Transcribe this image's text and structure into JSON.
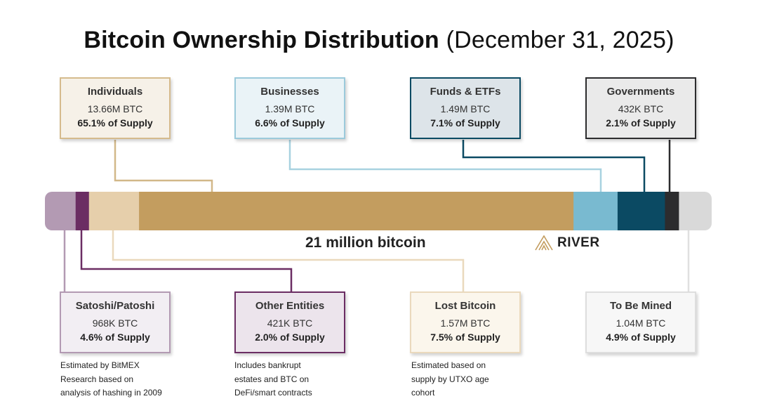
{
  "title": {
    "main": "Bitcoin Ownership Distribution",
    "date": "(December 31, 2025)"
  },
  "bar_label": "21 million bitcoin",
  "logo_text": "RIVER",
  "colors": {
    "satoshi": "#b39ab3",
    "other_entities": "#6b2d63",
    "lost": "#e6cfab",
    "individuals": "#c39d5f",
    "businesses": "#79bad0",
    "funds": "#0b4a63",
    "governments": "#2c2c2e",
    "to_be_mined": "#d9d9d9"
  },
  "chart_data": {
    "type": "bar",
    "total": "21 million bitcoin",
    "segments": [
      {
        "name": "Satoshi/Patoshi",
        "btc": "968K BTC",
        "percent": 4.6
      },
      {
        "name": "Other Entities",
        "btc": "421K BTC",
        "percent": 2.0
      },
      {
        "name": "Lost Bitcoin",
        "btc": "1.57M BTC",
        "percent": 7.5
      },
      {
        "name": "Individuals",
        "btc": "13.66M BTC",
        "percent": 65.1
      },
      {
        "name": "Businesses",
        "btc": "1.39M BTC",
        "percent": 6.6
      },
      {
        "name": "Funds & ETFs",
        "btc": "1.49M BTC",
        "percent": 7.1
      },
      {
        "name": "Governments",
        "btc": "432K BTC",
        "percent": 2.1
      },
      {
        "name": "To Be Mined",
        "btc": "1.04M BTC",
        "percent": 4.9
      }
    ]
  },
  "boxes": {
    "individuals": {
      "label": "Individuals",
      "btc": "13.66M BTC",
      "pct": "65.1% of Supply"
    },
    "businesses": {
      "label": "Businesses",
      "btc": "1.39M BTC",
      "pct": "6.6% of Supply"
    },
    "funds": {
      "label": "Funds & ETFs",
      "btc": "1.49M BTC",
      "pct": "7.1% of Supply"
    },
    "governments": {
      "label": "Governments",
      "btc": "432K BTC",
      "pct": "2.1% of Supply"
    },
    "satoshi": {
      "label": "Satoshi/Patoshi",
      "btc": "968K BTC",
      "pct": "4.6% of Supply"
    },
    "other_entities": {
      "label": "Other Entities",
      "btc": "421K BTC",
      "pct": "2.0% of Supply"
    },
    "lost": {
      "label": "Lost Bitcoin",
      "btc": "1.57M BTC",
      "pct": "7.5% of Supply"
    },
    "to_be_mined": {
      "label": "To Be Mined",
      "btc": "1.04M BTC",
      "pct": "4.9% of Supply"
    }
  },
  "notes": {
    "satoshi": [
      "Estimated by BitMEX",
      "Research based on",
      "analysis of hashing in 2009"
    ],
    "other_entities": [
      "Includes bankrupt",
      "estates and BTC on",
      "DeFi/smart contracts"
    ],
    "lost": [
      "Estimated based on",
      "supply by UTXO age",
      "cohort"
    ]
  }
}
